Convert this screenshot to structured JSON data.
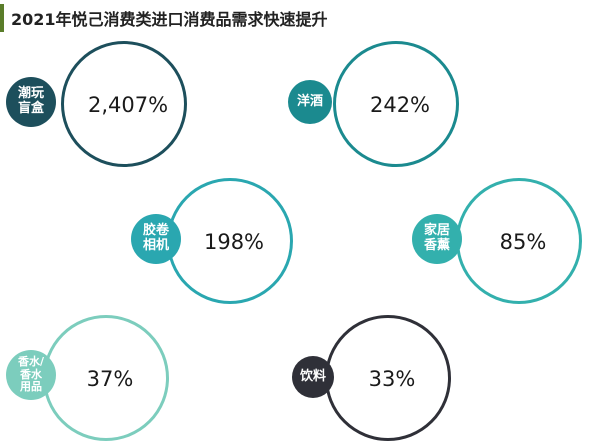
{
  "title": "2021年悦己消费类进口消费品需求快速提升",
  "colors": {
    "title_accent": "#5a7d2a"
  },
  "chart_data": {
    "type": "bubble",
    "title": "2021年悦己消费类进口消费品需求快速提升",
    "items": [
      {
        "category": "潮玩\n盲盒",
        "value": 2407,
        "display": "2,407%",
        "color": "#1d4f5c"
      },
      {
        "category": "洋酒",
        "value": 242,
        "display": "242%",
        "color": "#1b8a8f"
      },
      {
        "category": "胶卷\n相机",
        "value": 198,
        "display": "198%",
        "color": "#2aa7b0"
      },
      {
        "category": "家居\n香薰",
        "value": 85,
        "display": "85%",
        "color": "#33b0ad"
      },
      {
        "category": "香水/\n香水\n用品",
        "value": 37,
        "display": "37%",
        "color": "#7ccdbd"
      },
      {
        "category": "饮料",
        "value": 33,
        "display": "33%",
        "color": "#2f3038"
      }
    ]
  }
}
